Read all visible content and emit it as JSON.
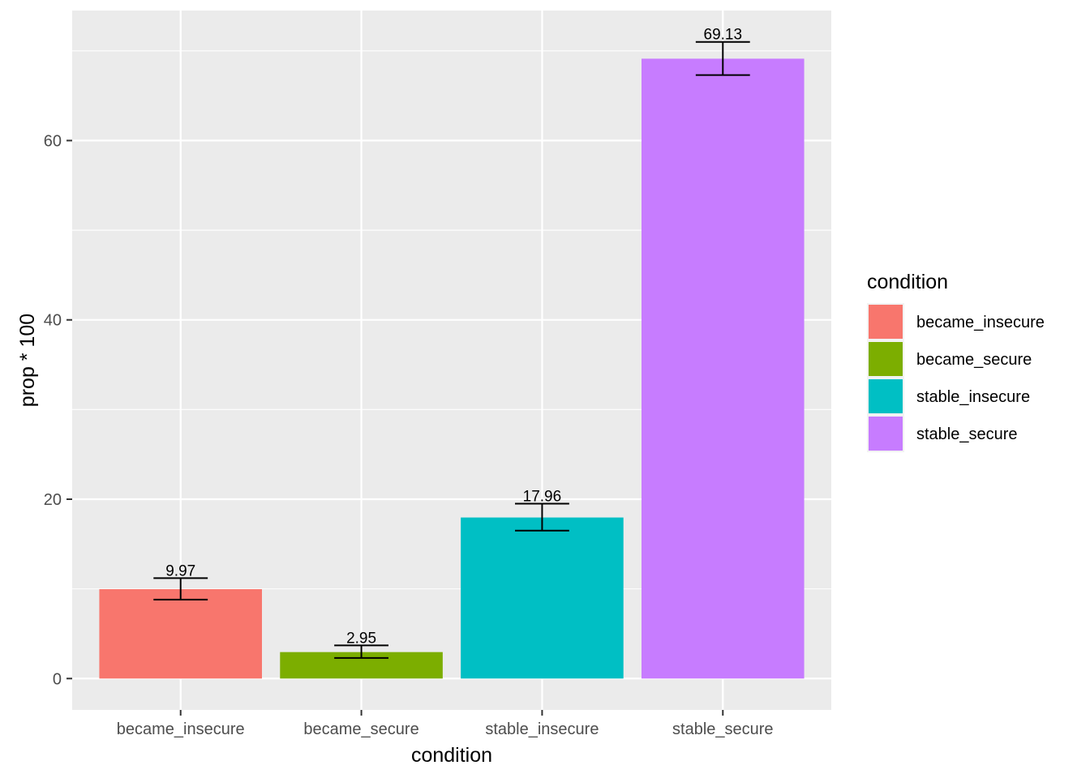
{
  "chart_data": {
    "type": "bar",
    "title": "",
    "xlabel": "condition",
    "ylabel": "prop * 100",
    "categories": [
      "became_insecure",
      "became_secure",
      "stable_insecure",
      "stable_secure"
    ],
    "values": [
      9.97,
      2.95,
      17.96,
      69.13
    ],
    "value_labels": [
      "9.97",
      "2.95",
      "17.96",
      "69.13"
    ],
    "error_bars": [
      {
        "low": 8.8,
        "high": 11.2
      },
      {
        "low": 2.3,
        "high": 3.7
      },
      {
        "low": 16.5,
        "high": 19.5
      },
      {
        "low": 67.3,
        "high": 71.0
      }
    ],
    "colors": [
      "#F8766D",
      "#7CAE00",
      "#00BFC4",
      "#C77CFF"
    ],
    "ylim": [
      -3.5,
      74.5
    ],
    "yticks": [
      0,
      20,
      40,
      60
    ],
    "ytick_labels": [
      "0",
      "20",
      "40",
      "60"
    ],
    "grid": true,
    "panel_background": "#EBEBEB",
    "legend": {
      "title": "condition",
      "placement": "right",
      "entries": [
        "became_insecure",
        "became_secure",
        "stable_insecure",
        "stable_secure"
      ]
    }
  }
}
